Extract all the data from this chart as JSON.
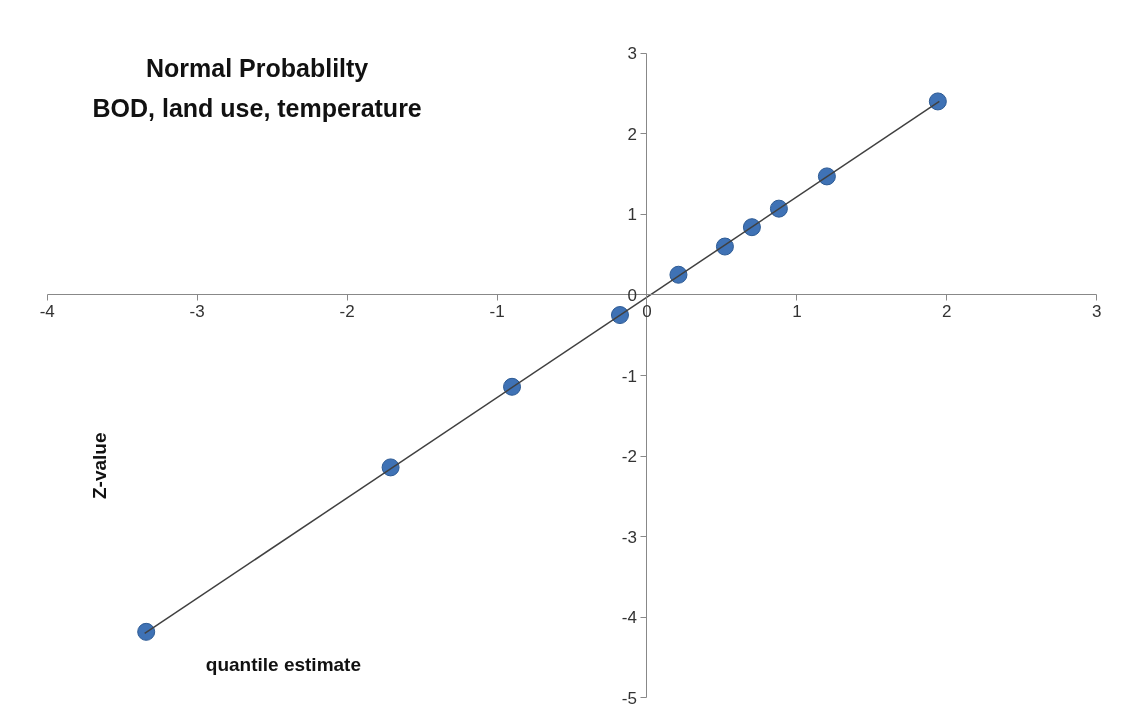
{
  "chart_data": {
    "type": "scatter",
    "title": "Normal Probablilty",
    "subtitle": "BOD, land use, temperature",
    "xlabel": "quantile estimate",
    "ylabel": "Z-value",
    "xlim": [
      -4,
      3
    ],
    "ylim": [
      -5,
      3
    ],
    "xticks": [
      -4,
      -3,
      -2,
      -1,
      0,
      1,
      2,
      3
    ],
    "yticks": [
      -5,
      -4,
      -3,
      -2,
      -1,
      0,
      1,
      2,
      3
    ],
    "grid": false,
    "series": [
      {
        "marker": "circle",
        "color": "#3f72b5",
        "x": [
          -3.34,
          -1.71,
          -0.9,
          -0.18,
          0.21,
          0.52,
          0.7,
          0.88,
          1.2,
          1.94
        ],
        "values": [
          -4.18,
          -2.14,
          -1.14,
          -0.25,
          0.25,
          0.6,
          0.84,
          1.07,
          1.47,
          2.4
        ]
      },
      {
        "type": "line",
        "marker": "none",
        "color": "#404040",
        "x": [
          -3.35,
          1.95
        ],
        "values": [
          -4.2,
          2.4
        ]
      }
    ]
  }
}
